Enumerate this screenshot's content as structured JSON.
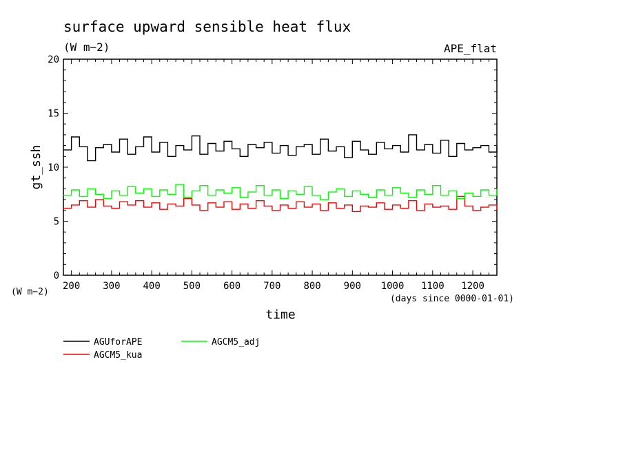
{
  "chart_data": {
    "type": "line",
    "title": "surface upward sensible heat flux",
    "subtitle": "(W m−2)",
    "tag": "APE_flat",
    "xlabel": "time",
    "xunits": "(days since 0000-01-01)",
    "ylabel": "gt_ssh",
    "yunits": "(W m−2)",
    "xlim": [
      180,
      1260
    ],
    "ylim": [
      0,
      20
    ],
    "xticks": [
      200,
      300,
      400,
      500,
      600,
      700,
      800,
      900,
      1000,
      1100,
      1200
    ],
    "yticks": [
      0,
      5,
      10,
      15,
      20
    ],
    "grid": false,
    "legend_position": "bottom-left",
    "series": [
      {
        "name": "AGUforAPE",
        "color": "#000000",
        "x": [
          180,
          200,
          220,
          240,
          260,
          280,
          300,
          320,
          340,
          360,
          380,
          400,
          420,
          440,
          460,
          480,
          500,
          520,
          540,
          560,
          580,
          600,
          620,
          640,
          660,
          680,
          700,
          720,
          740,
          760,
          780,
          800,
          820,
          840,
          860,
          880,
          900,
          920,
          940,
          960,
          980,
          1000,
          1020,
          1040,
          1060,
          1080,
          1100,
          1120,
          1140,
          1160,
          1180,
          1200,
          1220,
          1240,
          1260
        ],
        "values": [
          11.6,
          12.8,
          11.9,
          10.6,
          11.8,
          12.1,
          11.4,
          12.6,
          11.2,
          11.9,
          12.8,
          11.4,
          12.3,
          11.0,
          12.0,
          11.6,
          12.9,
          11.2,
          12.2,
          11.5,
          12.4,
          11.7,
          11.0,
          12.1,
          11.8,
          12.3,
          11.3,
          12.0,
          11.1,
          11.9,
          12.1,
          11.2,
          12.6,
          11.5,
          11.9,
          10.9,
          12.4,
          11.6,
          11.2,
          12.3,
          11.7,
          12.0,
          11.4,
          13.0,
          11.6,
          12.1,
          11.3,
          12.5,
          11.0,
          12.2,
          11.6,
          11.8,
          12.0,
          11.4,
          11.9
        ]
      },
      {
        "name": "AGCM5_kua",
        "color": "#ff0000",
        "x": [
          180,
          200,
          220,
          240,
          260,
          280,
          300,
          320,
          340,
          360,
          380,
          400,
          420,
          440,
          460,
          480,
          500,
          520,
          540,
          560,
          580,
          600,
          620,
          640,
          660,
          680,
          700,
          720,
          740,
          760,
          780,
          800,
          820,
          840,
          860,
          880,
          900,
          920,
          940,
          960,
          980,
          1000,
          1020,
          1040,
          1060,
          1080,
          1100,
          1120,
          1140,
          1160,
          1180,
          1200,
          1220,
          1240,
          1260
        ],
        "values": [
          6.2,
          6.5,
          6.9,
          6.3,
          7.0,
          6.4,
          6.2,
          6.8,
          6.5,
          6.9,
          6.3,
          6.7,
          6.1,
          6.6,
          6.4,
          7.1,
          6.5,
          6.0,
          6.7,
          6.3,
          6.8,
          6.1,
          6.6,
          6.2,
          6.9,
          6.4,
          6.0,
          6.5,
          6.2,
          6.8,
          6.3,
          6.6,
          6.0,
          6.7,
          6.2,
          6.5,
          5.9,
          6.4,
          6.3,
          6.7,
          6.1,
          6.5,
          6.2,
          6.9,
          6.0,
          6.6,
          6.3,
          6.4,
          6.1,
          7.3,
          6.4,
          6.0,
          6.3,
          6.5,
          6.0
        ]
      },
      {
        "name": "AGCM5_adj",
        "color": "#00ff00",
        "x": [
          180,
          200,
          220,
          240,
          260,
          280,
          300,
          320,
          340,
          360,
          380,
          400,
          420,
          440,
          460,
          480,
          500,
          520,
          540,
          560,
          580,
          600,
          620,
          640,
          660,
          680,
          700,
          720,
          740,
          760,
          780,
          800,
          820,
          840,
          860,
          880,
          900,
          920,
          940,
          960,
          980,
          1000,
          1020,
          1040,
          1060,
          1080,
          1100,
          1120,
          1140,
          1160,
          1180,
          1200,
          1220,
          1240,
          1260
        ],
        "values": [
          7.4,
          7.9,
          7.3,
          8.0,
          7.5,
          7.1,
          7.8,
          7.4,
          8.2,
          7.6,
          8.0,
          7.3,
          7.9,
          7.5,
          8.4,
          7.2,
          7.8,
          8.3,
          7.4,
          7.9,
          7.6,
          8.1,
          7.2,
          7.7,
          8.3,
          7.4,
          7.9,
          7.1,
          7.8,
          7.5,
          8.2,
          7.4,
          7.0,
          7.7,
          8.0,
          7.3,
          7.8,
          7.5,
          7.2,
          7.9,
          7.4,
          8.1,
          7.6,
          7.2,
          7.9,
          7.5,
          8.3,
          7.4,
          7.8,
          7.1,
          7.6,
          7.3,
          7.9,
          7.4,
          8.0
        ]
      }
    ]
  }
}
